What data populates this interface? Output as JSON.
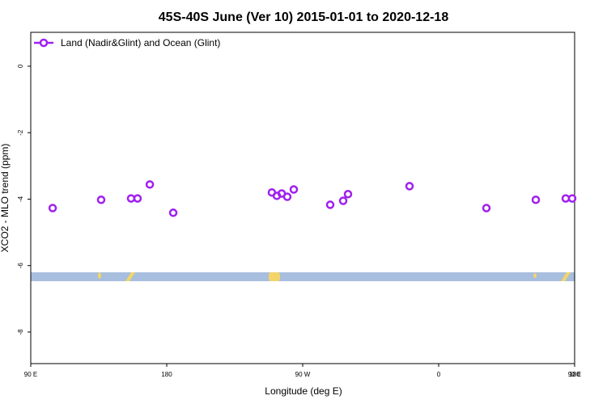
{
  "chart_data": {
    "type": "scatter",
    "title": "45S-40S June (Ver 10)   2015-01-01 to 2020-12-18",
    "x_label": "Longitude (deg E)",
    "y_label": "XCO2 - MLO trend (ppm)",
    "legend_position": "top-left",
    "xlim": [
      90,
      450
    ],
    "xticks": [
      {
        "value": 90,
        "label": "90 E"
      },
      {
        "value": 180,
        "label": "180"
      },
      {
        "value": 270,
        "label": "90 W"
      },
      {
        "value": 360,
        "label": "0"
      },
      {
        "value": 450,
        "label": "90 E"
      },
      {
        "value": 540,
        "label": "180"
      }
    ],
    "ylim": [
      -8.95,
      1.02
    ],
    "yticks": [
      0,
      -2,
      -4,
      -6,
      -8
    ],
    "series": [
      {
        "name": "Land (Nadir&Glint) and Ocean (Glint)",
        "color": "#a020f0",
        "x": [
          104.5,
          136.6,
          156.4,
          160.7,
          168.8,
          184.3,
          249.6,
          252.9,
          256.1,
          259.8,
          264.1,
          288.2,
          296.8,
          300.0,
          340.7,
          391.6,
          424.3,
          444.1,
          448.4
        ],
        "values": [
          -4.27,
          -4.02,
          -3.98,
          -3.98,
          -3.56,
          -4.41,
          -3.8,
          -3.9,
          -3.83,
          -3.93,
          -3.71,
          -4.17,
          -4.05,
          -3.85,
          -3.61,
          -4.27,
          -4.02,
          -3.98,
          -3.98
        ]
      }
    ]
  }
}
